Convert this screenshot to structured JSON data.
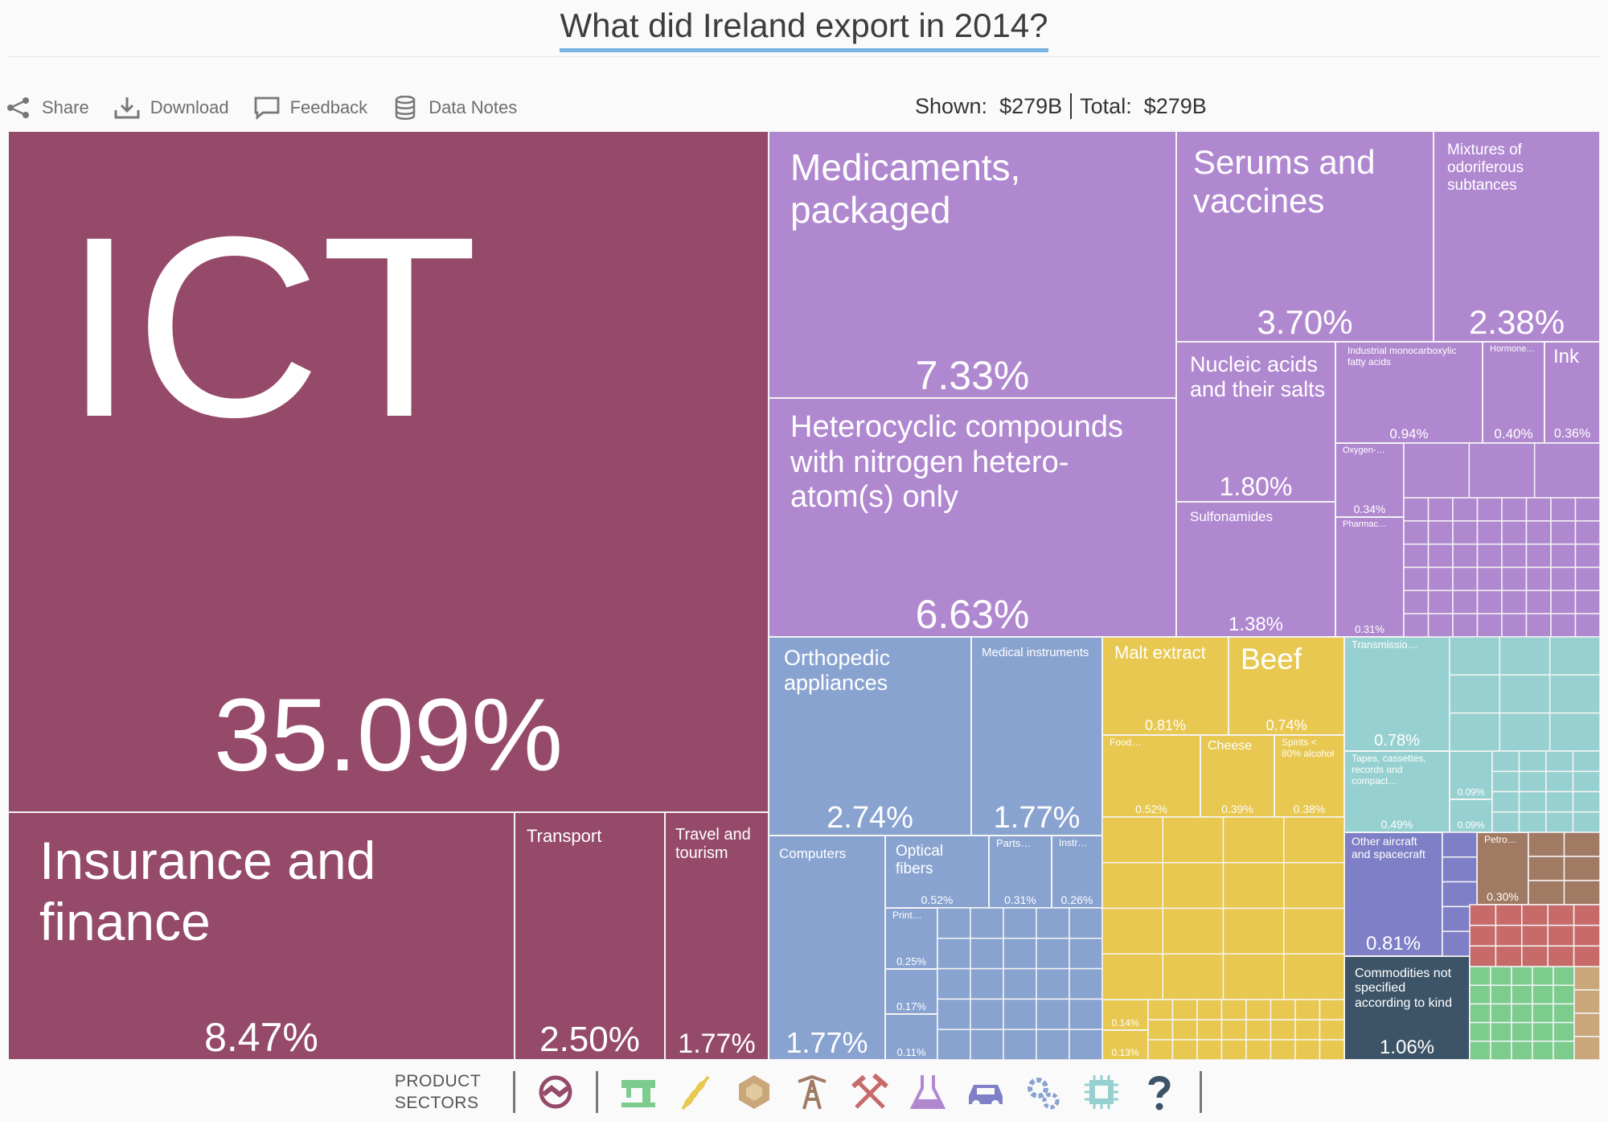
{
  "title": "What did Ireland export in 2014?",
  "toolbar": {
    "share": "Share",
    "download": "Download",
    "feedback": "Feedback",
    "data_notes": "Data Notes"
  },
  "totals": {
    "shown_label": "Shown:",
    "shown_value": "$279B",
    "total_label": "Total:",
    "total_value": "$279B"
  },
  "sectors": {
    "label_line1": "PRODUCT",
    "label_line2": "SECTORS",
    "icons": [
      {
        "name": "services-icon",
        "color": "#964a6a"
      },
      {
        "name": "textiles-icon",
        "color": "#7ccc8e"
      },
      {
        "name": "agriculture-icon",
        "color": "#e8c850"
      },
      {
        "name": "stone-icon",
        "color": "#c9a77b"
      },
      {
        "name": "minerals-icon",
        "color": "#a07a62"
      },
      {
        "name": "metals-icon",
        "color": "#c76a6a"
      },
      {
        "name": "chemicals-icon",
        "color": "#b088d0"
      },
      {
        "name": "vehicles-icon",
        "color": "#7f7fc8"
      },
      {
        "name": "machinery-icon",
        "color": "#89a3d0"
      },
      {
        "name": "electronics-icon",
        "color": "#97d0d0"
      },
      {
        "name": "other-icon",
        "color": "#3d5468"
      }
    ]
  },
  "chart_data": {
    "type": "treemap",
    "title": "What did Ireland export in 2014?",
    "unit": "share of total exports (%)",
    "total_exports": "$279B",
    "colors": {
      "services": "#964a6a",
      "chemicals": "#b088d0",
      "machinery": "#89a3d0",
      "agriculture": "#e8c850",
      "electronics": "#97d0d0",
      "vehicles": "#7f7fc8",
      "other": "#3d5468",
      "minerals": "#a07a62",
      "metals": "#c76a6a",
      "textiles": "#7ccc8e",
      "stone": "#c9a77b"
    },
    "items": [
      {
        "label": "ICT",
        "value": 35.09,
        "pct": "35.09%",
        "sector": "services"
      },
      {
        "label": "Insurance and finance",
        "value": 8.47,
        "pct": "8.47%",
        "sector": "services"
      },
      {
        "label": "Transport",
        "value": 2.5,
        "pct": "2.50%",
        "sector": "services"
      },
      {
        "label": "Travel and tourism",
        "value": 1.77,
        "pct": "1.77%",
        "sector": "services"
      },
      {
        "label": "Medicaments, packaged",
        "value": 7.33,
        "pct": "7.33%",
        "sector": "chemicals"
      },
      {
        "label": "Heterocyclic compounds with nitrogen hetero-atom(s) only",
        "value": 6.63,
        "pct": "6.63%",
        "sector": "chemicals"
      },
      {
        "label": "Serums and vaccines",
        "value": 3.7,
        "pct": "3.70%",
        "sector": "chemicals"
      },
      {
        "label": "Mixtures of odoriferous subtances",
        "value": 2.38,
        "pct": "2.38%",
        "sector": "chemicals"
      },
      {
        "label": "Nucleic acids and their salts",
        "value": 1.8,
        "pct": "1.80%",
        "sector": "chemicals"
      },
      {
        "label": "Sulfonamides",
        "value": 1.38,
        "pct": "1.38%",
        "sector": "chemicals"
      },
      {
        "label": "Industrial monocarboxylic fatty acids",
        "value": 0.94,
        "pct": "0.94%",
        "sector": "chemicals"
      },
      {
        "label": "Hormone…",
        "value": 0.4,
        "pct": "0.40%",
        "sector": "chemicals"
      },
      {
        "label": "Ink",
        "value": 0.36,
        "pct": "0.36%",
        "sector": "chemicals"
      },
      {
        "label": "Oxygen-…",
        "value": 0.34,
        "pct": "0.34%",
        "sector": "chemicals"
      },
      {
        "label": "Pharmac…",
        "value": 0.31,
        "pct": "0.31%",
        "sector": "chemicals"
      },
      {
        "label": "Orthopedic appliances",
        "value": 2.74,
        "pct": "2.74%",
        "sector": "machinery"
      },
      {
        "label": "Medical instruments",
        "value": 1.77,
        "pct": "1.77%",
        "sector": "machinery"
      },
      {
        "label": "Computers",
        "value": 1.77,
        "pct": "1.77%",
        "sector": "machinery"
      },
      {
        "label": "Optical fibers",
        "value": 0.52,
        "pct": "0.52%",
        "sector": "machinery"
      },
      {
        "label": "Parts…",
        "value": 0.31,
        "pct": "0.31%",
        "sector": "machinery"
      },
      {
        "label": "Instr…",
        "value": 0.26,
        "pct": "0.26%",
        "sector": "machinery"
      },
      {
        "label": "Print…",
        "value": 0.25,
        "pct": "0.25%",
        "sector": "machinery"
      },
      {
        "label": "",
        "value": 0.17,
        "pct": "0.17%",
        "sector": "machinery"
      },
      {
        "label": "",
        "value": 0.11,
        "pct": "0.11%",
        "sector": "machinery"
      },
      {
        "label": "Malt extract",
        "value": 0.81,
        "pct": "0.81%",
        "sector": "agriculture"
      },
      {
        "label": "Beef",
        "value": 0.74,
        "pct": "0.74%",
        "sector": "agriculture"
      },
      {
        "label": "Food…",
        "value": 0.52,
        "pct": "0.52%",
        "sector": "agriculture"
      },
      {
        "label": "Cheese",
        "value": 0.39,
        "pct": "0.39%",
        "sector": "agriculture"
      },
      {
        "label": "Spirits < 80% alcohol",
        "value": 0.38,
        "pct": "0.38%",
        "sector": "agriculture"
      },
      {
        "label": "",
        "value": 0.14,
        "pct": "0.14%",
        "sector": "agriculture"
      },
      {
        "label": "",
        "value": 0.13,
        "pct": "0.13%",
        "sector": "agriculture"
      },
      {
        "label": "Transmissio…",
        "value": 0.78,
        "pct": "0.78%",
        "sector": "electronics"
      },
      {
        "label": "Tapes, cassettes, records and compact…",
        "value": 0.49,
        "pct": "0.49%",
        "sector": "electronics"
      },
      {
        "label": "",
        "value": 0.09,
        "pct": "0.09%",
        "sector": "electronics"
      },
      {
        "label": "",
        "value": 0.09,
        "pct": "0.09%",
        "sector": "electronics"
      },
      {
        "label": "Other aircraft and spacecraft",
        "value": 0.81,
        "pct": "0.81%",
        "sector": "vehicles"
      },
      {
        "label": "Commodities not specified according to kind",
        "value": 1.06,
        "pct": "1.06%",
        "sector": "other"
      },
      {
        "label": "Petro…",
        "value": 0.3,
        "pct": "0.30%",
        "sector": "minerals"
      }
    ]
  }
}
